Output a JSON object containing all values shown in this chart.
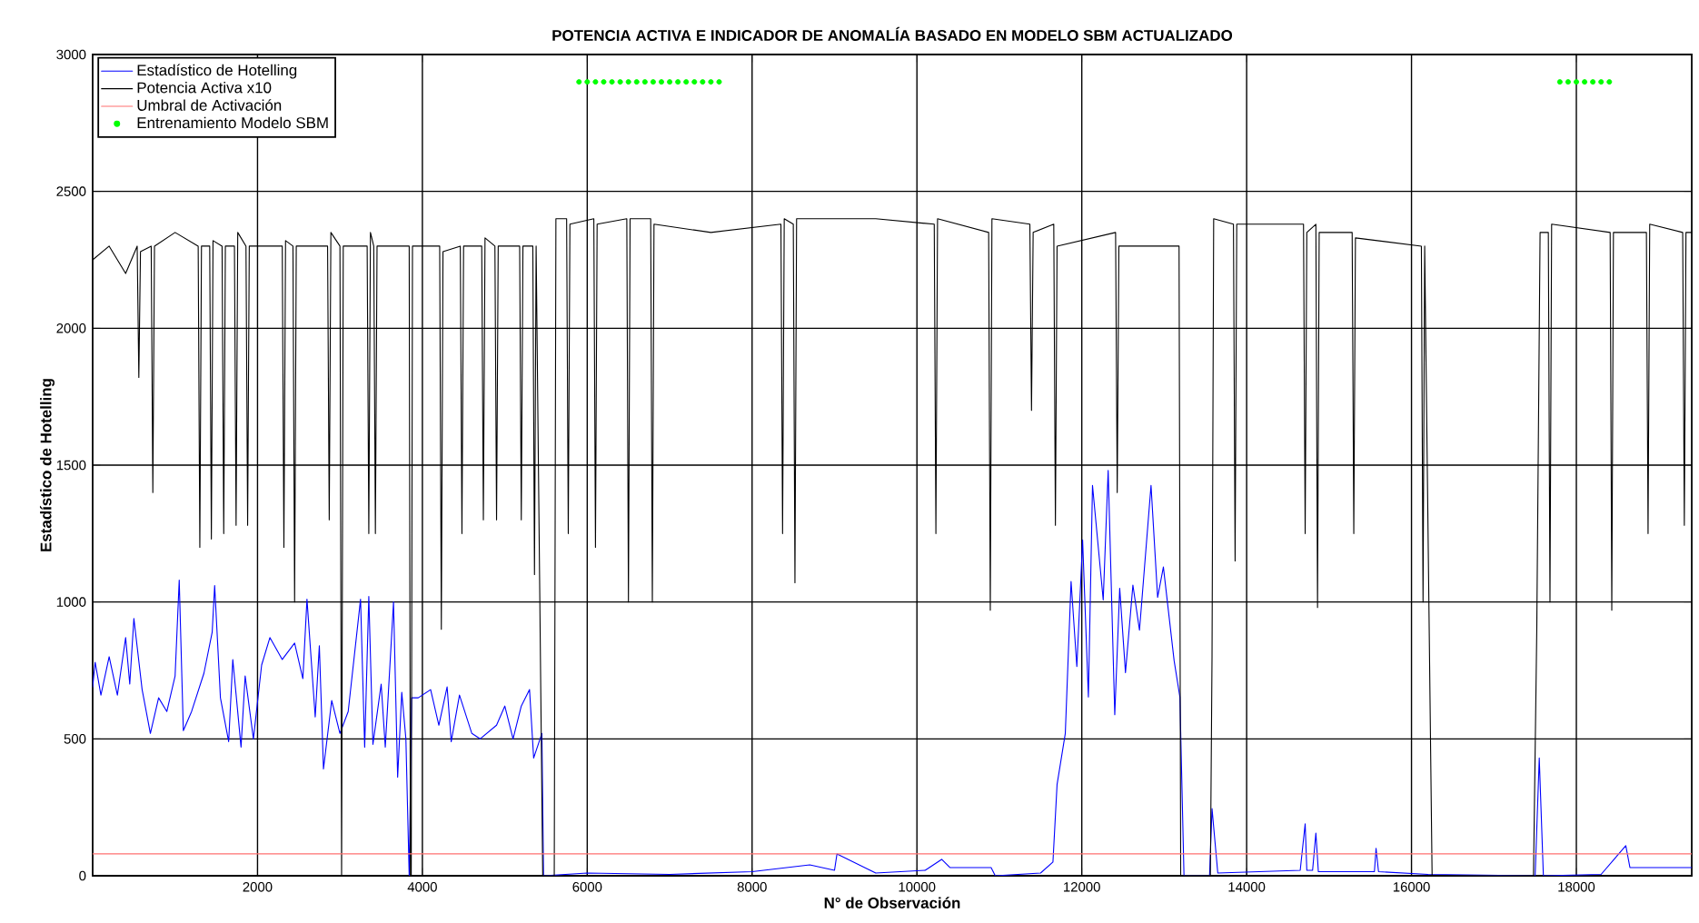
{
  "chart_data": {
    "type": "line",
    "title": "POTENCIA ACTIVA E INDICADOR DE ANOMALÍA BASADO EN MODELO SBM ACTUALIZADO",
    "xlabel": "N° de Observación",
    "ylabel": "Estadístico de Hotelling",
    "xlim": [
      0,
      19400
    ],
    "ylim": [
      0,
      3000
    ],
    "xticks": [
      2000,
      4000,
      6000,
      8000,
      10000,
      12000,
      14000,
      16000,
      18000
    ],
    "yticks": [
      0,
      500,
      1000,
      1500,
      2000,
      2500,
      3000
    ],
    "grid": true,
    "legend": "top left",
    "series": [
      {
        "name": "Estadístico de Hotelling",
        "color": "#0000ff",
        "x": [
          0,
          30,
          100,
          200,
          300,
          400,
          450,
          500,
          600,
          700,
          800,
          900,
          1000,
          1050,
          1100,
          1200,
          1350,
          1450,
          1480,
          1550,
          1650,
          1700,
          1800,
          1850,
          1950,
          2050,
          2150,
          2300,
          2450,
          2550,
          2600,
          2700,
          2750,
          2800,
          2900,
          3000,
          3100,
          3250,
          3300,
          3350,
          3400,
          3500,
          3550,
          3650,
          3700,
          3750,
          3800,
          3840,
          3870,
          3950,
          4100,
          4200,
          4300,
          4350,
          4450,
          4600,
          4700,
          4900,
          5000,
          5100,
          5200,
          5300,
          5350,
          5450,
          5470,
          6000,
          7000,
          8000,
          8700,
          9000,
          9030,
          9500,
          10100,
          10300,
          10400,
          10900,
          10950,
          11500,
          11650,
          11700,
          11800,
          11870,
          11940,
          12010,
          12080,
          12130,
          12260,
          12320,
          12400,
          12460,
          12530,
          12620,
          12700,
          12840,
          12920,
          12990,
          13120,
          13190,
          13240,
          13550,
          13580,
          13650,
          14650,
          14710,
          14730,
          14800,
          14840,
          14870,
          15550,
          15570,
          15600,
          16200,
          17500,
          17550,
          17600,
          18300,
          18600,
          18650,
          19400
        ],
        "values": [
          690,
          780,
          660,
          800,
          660,
          870,
          700,
          940,
          680,
          520,
          650,
          600,
          730,
          1080,
          530,
          600,
          740,
          890,
          1060,
          650,
          490,
          790,
          470,
          730,
          500,
          770,
          870,
          790,
          850,
          720,
          1010,
          580,
          840,
          390,
          640,
          520,
          600,
          1010,
          470,
          1020,
          480,
          700,
          470,
          1000,
          360,
          670,
          500,
          0,
          650,
          650,
          680,
          550,
          690,
          490,
          660,
          520,
          500,
          550,
          620,
          500,
          620,
          680,
          430,
          520,
          0,
          10,
          5,
          15,
          40,
          20,
          80,
          10,
          20,
          60,
          30,
          30,
          0,
          10,
          50,
          333,
          520,
          1075,
          764,
          1227,
          653,
          1426,
          1007,
          1481,
          588,
          1050,
          742,
          1062,
          897,
          1426,
          1017,
          1128,
          786,
          653,
          0,
          0,
          245,
          10,
          20,
          190,
          20,
          20,
          156,
          15,
          15,
          100,
          15,
          5,
          0,
          430,
          0,
          5,
          110,
          30,
          30
        ]
      },
      {
        "name": "Potencia Activa x10",
        "color": "#000000",
        "x": [
          0,
          200,
          400,
          540,
          560,
          580,
          710,
          730,
          750,
          1000,
          1280,
          1300,
          1320,
          1420,
          1440,
          1460,
          1570,
          1590,
          1610,
          1720,
          1740,
          1760,
          1860,
          1880,
          1900,
          2300,
          2320,
          2340,
          2430,
          2450,
          2470,
          2850,
          2870,
          2890,
          3000,
          3020,
          3040,
          3330,
          3350,
          3370,
          3410,
          3430,
          3450,
          3840,
          3855,
          3865,
          3880,
          4210,
          4230,
          4250,
          4460,
          4480,
          4500,
          4720,
          4740,
          4760,
          4880,
          4900,
          4920,
          5180,
          5200,
          5220,
          5340,
          5360,
          5380,
          5460,
          5600,
          5620,
          5750,
          5770,
          5790,
          6080,
          6100,
          6120,
          6480,
          6500,
          6520,
          6770,
          6790,
          6810,
          7500,
          8350,
          8370,
          8390,
          8500,
          8520,
          8540,
          9500,
          10210,
          10230,
          10250,
          10870,
          10890,
          10910,
          11370,
          11390,
          11410,
          11660,
          11680,
          11700,
          12410,
          12430,
          12450,
          13180,
          13200,
          13560,
          13580,
          13600,
          13840,
          13860,
          13880,
          14690,
          14710,
          14730,
          14840,
          14860,
          14880,
          15280,
          15300,
          15320,
          16120,
          16140,
          16160,
          16250,
          17480,
          17520,
          17560,
          17660,
          17680,
          17700,
          18410,
          18430,
          18450,
          18850,
          18870,
          18890,
          19290,
          19310,
          19330,
          19400
        ],
        "values": [
          2250,
          2300,
          2200,
          2300,
          1820,
          2280,
          2300,
          1400,
          2300,
          2350,
          2300,
          1200,
          2300,
          2300,
          1230,
          2320,
          2300,
          1250,
          2300,
          2300,
          1280,
          2350,
          2300,
          1280,
          2300,
          2300,
          1200,
          2320,
          2300,
          1000,
          2300,
          2300,
          1300,
          2350,
          2300,
          0,
          2300,
          2300,
          1250,
          2350,
          2300,
          1250,
          2300,
          2300,
          0,
          0,
          2300,
          2300,
          900,
          2280,
          2300,
          1250,
          2300,
          2300,
          1300,
          2330,
          2300,
          1300,
          2300,
          2300,
          1300,
          2300,
          2300,
          1100,
          2300,
          0,
          0,
          2400,
          2400,
          1250,
          2380,
          2400,
          1200,
          2380,
          2400,
          1000,
          2400,
          2400,
          1000,
          2380,
          2350,
          2380,
          1250,
          2400,
          2380,
          1070,
          2400,
          2400,
          2380,
          1250,
          2400,
          2350,
          970,
          2400,
          2380,
          1700,
          2350,
          2380,
          1280,
          2300,
          2350,
          1400,
          2300,
          2300,
          0,
          0,
          800,
          2400,
          2380,
          1150,
          2380,
          2380,
          1250,
          2350,
          2380,
          980,
          2350,
          2350,
          1250,
          2330,
          2300,
          1000,
          2300,
          0,
          0,
          900,
          2350,
          2350,
          1000,
          2380,
          2350,
          970,
          2350,
          2350,
          1250,
          2380,
          2350,
          1280,
          2350,
          2350
        ]
      },
      {
        "name": "Umbral de Activación",
        "color": "#ff7070",
        "x": [
          0,
          19400
        ],
        "values": [
          80,
          80
        ]
      },
      {
        "name": "Entrenamiento Modelo SBM",
        "color": "#00ff00",
        "type": "scatter",
        "marker": "circle",
        "x": [
          5900,
          6000,
          6100,
          6200,
          6300,
          6400,
          6500,
          6600,
          6700,
          6800,
          6900,
          7000,
          7100,
          7200,
          7300,
          7400,
          7500,
          7600,
          17800,
          17900,
          18000,
          18100,
          18200,
          18300,
          18400
        ],
        "values": [
          2900,
          2900,
          2900,
          2900,
          2900,
          2900,
          2900,
          2900,
          2900,
          2900,
          2900,
          2900,
          2900,
          2900,
          2900,
          2900,
          2900,
          2900,
          2900,
          2900,
          2900,
          2900,
          2900,
          2900,
          2900
        ]
      }
    ]
  }
}
